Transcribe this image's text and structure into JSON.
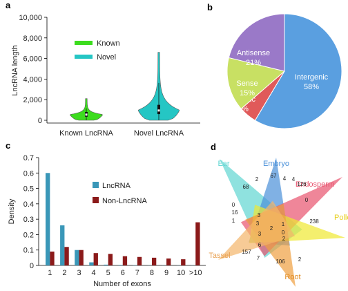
{
  "panels": {
    "a": "a",
    "b": "b",
    "c": "c",
    "d": "d"
  },
  "colors": {
    "known": "#3cdc1e",
    "novel": "#25c6c4",
    "lncrna_bar": "#3a97b8",
    "nonlncrna_bar": "#8b1a1a",
    "intergenic": "#5a9fe0",
    "antisense": "#9a79c8",
    "sense": "#c8e063",
    "intronic": "#e05a5a"
  },
  "chart_data": [
    {
      "type": "violin",
      "panel": "a",
      "title": "",
      "xlabel": "",
      "ylabel": "LncRNA length",
      "ylim": [
        0,
        10000
      ],
      "yticks": [
        "0",
        "2,000",
        "4,000",
        "6,000",
        "8,000",
        "10,000"
      ],
      "ytick_values": [
        0,
        2000,
        4000,
        6000,
        8000,
        10000
      ],
      "categories": [
        "Known LncRNA",
        "Novel LncRNA"
      ],
      "legend": [
        {
          "name": "Known",
          "color": "#3cdc1e"
        },
        {
          "name": "Novel",
          "color": "#25c6c4"
        }
      ],
      "series": [
        {
          "name": "Known",
          "min": 0,
          "max": 2100,
          "median": 550,
          "q1": 350,
          "q3": 800
        },
        {
          "name": "Novel",
          "min": 0,
          "max": 6600,
          "median": 950,
          "q1": 600,
          "q3": 1500
        }
      ]
    },
    {
      "type": "pie",
      "panel": "b",
      "slices": [
        {
          "label": "Intergenic",
          "value": 58,
          "text": "58%",
          "color": "#5a9fe0"
        },
        {
          "label": "Intronic",
          "value": 5,
          "text": "5%",
          "color": "#e05a5a"
        },
        {
          "label": "Sense",
          "value": 15,
          "text": "15%",
          "color": "#c8e063"
        },
        {
          "label": "Antisense",
          "value": 21,
          "text": "21%",
          "color": "#9a79c8"
        }
      ]
    },
    {
      "type": "bar",
      "panel": "c",
      "xlabel": "Number of exons",
      "ylabel": "Density",
      "ylim": [
        0,
        0.7
      ],
      "yticks": [
        "0",
        "0.1",
        "0.2",
        "0.3",
        "0.4",
        "0.5",
        "0.6",
        "0.7"
      ],
      "ytick_values": [
        0,
        0.1,
        0.2,
        0.3,
        0.4,
        0.5,
        0.6,
        0.7
      ],
      "categories": [
        "1",
        "2",
        "3",
        "4",
        "5",
        "6",
        "7",
        "8",
        "9",
        "10",
        ">10"
      ],
      "series": [
        {
          "name": "LncRNA",
          "color": "#3a97b8",
          "values": [
            0.6,
            0.26,
            0.1,
            0.02,
            0.005,
            0.003,
            0.002,
            0.001,
            0.001,
            0.001,
            0.001
          ]
        },
        {
          "name": "Non-LncRNA",
          "color": "#8b1a1a",
          "values": [
            0.09,
            0.12,
            0.1,
            0.08,
            0.075,
            0.06,
            0.055,
            0.05,
            0.045,
            0.04,
            0.28
          ]
        }
      ]
    },
    {
      "type": "venn",
      "panel": "d",
      "sets": [
        {
          "name": "Ear",
          "color": "#5fd6d2"
        },
        {
          "name": "Embryo",
          "color": "#4a90d9"
        },
        {
          "name": "Endosperm",
          "color": "#e8536e"
        },
        {
          "name": "Pollen",
          "color": "#f0e830"
        },
        {
          "name": "Root",
          "color": "#f0a040"
        },
        {
          "name": "Tassel",
          "color": "#f4b56a"
        }
      ],
      "counts": [
        "68",
        "2",
        "67",
        "4",
        "4",
        "126",
        "0",
        "238",
        "3",
        "3",
        "2",
        "3",
        "1",
        "0",
        "16",
        "1",
        "157",
        "7",
        "6",
        "106",
        "2",
        "0",
        "2"
      ]
    }
  ]
}
